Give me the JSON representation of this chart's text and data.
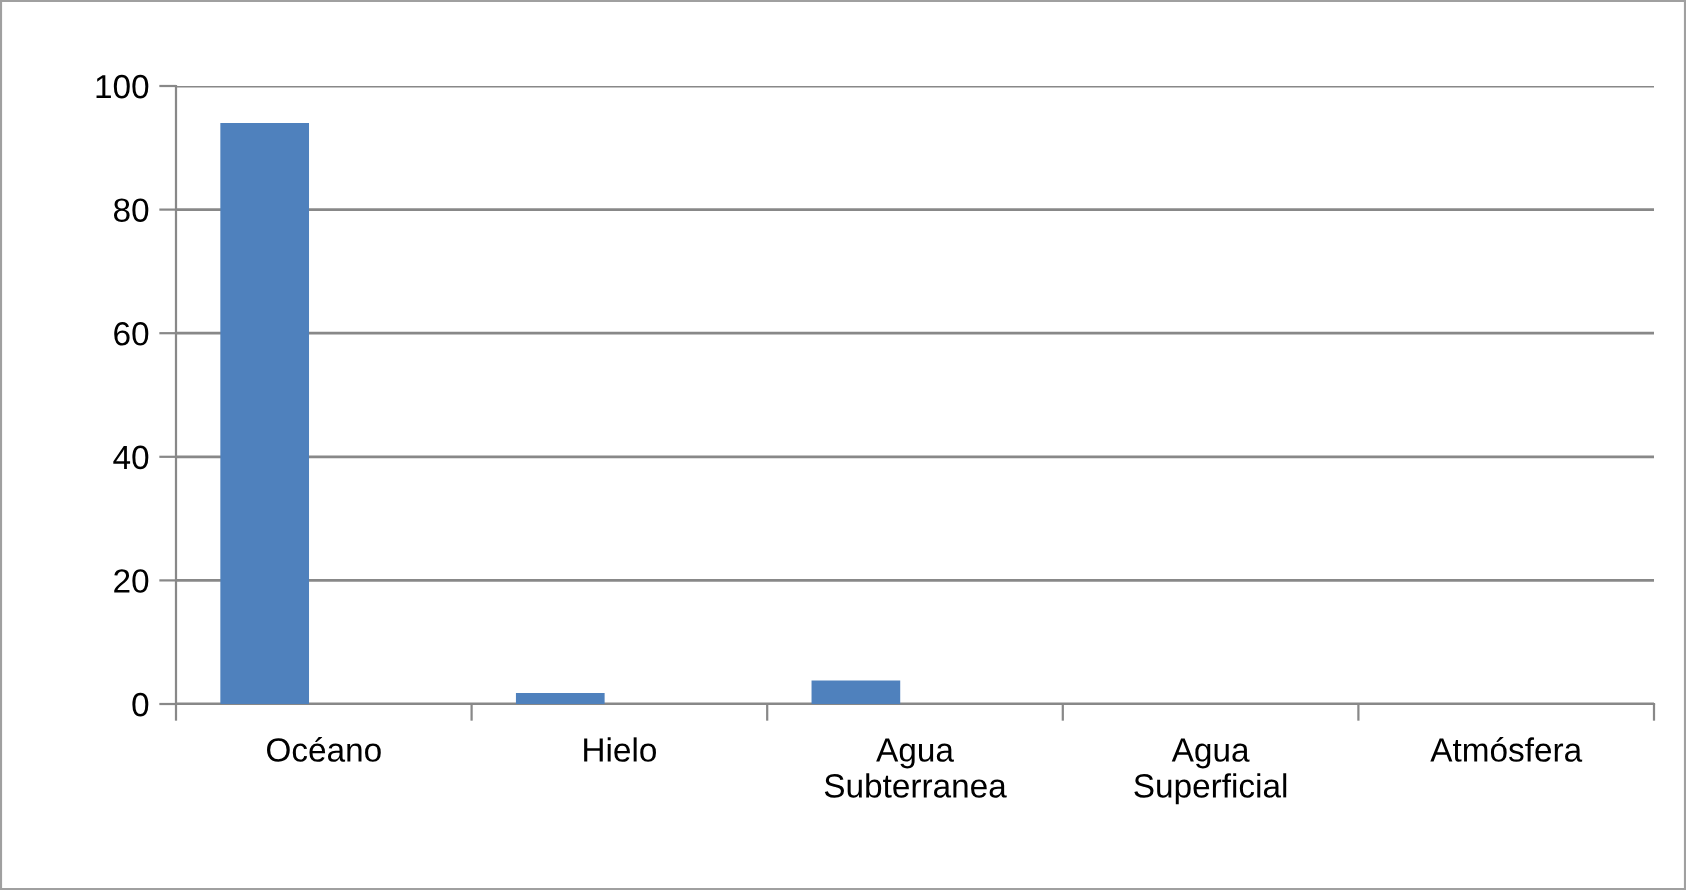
{
  "chart_data": {
    "type": "bar",
    "categories": [
      "Océano",
      "Hielo",
      "Agua\nSubterranea",
      "Agua\nSuperficial",
      "Atmósfera"
    ],
    "values": [
      94,
      1.8,
      3.8,
      0,
      0
    ],
    "color": "#4f81bd",
    "ylim": [
      0,
      100
    ],
    "yticks": [
      0,
      20,
      40,
      60,
      80,
      100
    ],
    "grid": "y"
  }
}
